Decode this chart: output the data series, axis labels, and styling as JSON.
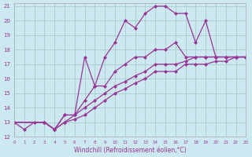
{
  "xlabel": "Windchill (Refroidissement éolien,°C)",
  "background_color": "#cce8f0",
  "grid_color": "#aacccc",
  "line_color": "#993399",
  "xlim": [
    0,
    23
  ],
  "ylim": [
    12,
    21.2
  ],
  "xticks": [
    0,
    1,
    2,
    3,
    4,
    5,
    6,
    7,
    8,
    9,
    10,
    11,
    12,
    13,
    14,
    15,
    16,
    17,
    18,
    19,
    20,
    21,
    22,
    23
  ],
  "yticks": [
    12,
    13,
    14,
    15,
    16,
    17,
    18,
    19,
    20,
    21
  ],
  "series": [
    {
      "x": [
        0,
        1,
        2,
        3,
        4,
        5,
        6,
        7,
        8,
        9,
        10,
        11,
        12,
        13,
        14,
        15,
        16,
        17,
        18,
        19,
        20,
        21,
        22,
        23
      ],
      "y": [
        13,
        12.5,
        13,
        13,
        12.5,
        13.5,
        13.5,
        17.5,
        15.5,
        17.5,
        18.5,
        20,
        19.5,
        20.5,
        21,
        21,
        20.5,
        20.5,
        18.5,
        20,
        17.5,
        17.5,
        17.5,
        17.5
      ]
    },
    {
      "x": [
        0,
        3,
        4,
        5,
        6,
        7,
        8,
        9,
        10,
        11,
        12,
        13,
        14,
        15,
        16,
        17,
        18,
        19,
        20,
        21,
        22,
        23
      ],
      "y": [
        13,
        13,
        12.5,
        13.5,
        13.5,
        14.5,
        15.5,
        15.5,
        16.5,
        17.0,
        17.5,
        17.5,
        18.0,
        18.0,
        18.5,
        17.5,
        17.5,
        17.5,
        17.5,
        17.5,
        17.5,
        17.5
      ]
    },
    {
      "x": [
        0,
        3,
        4,
        5,
        6,
        7,
        8,
        9,
        10,
        11,
        12,
        13,
        14,
        15,
        16,
        17,
        18,
        19,
        20,
        21,
        22,
        23
      ],
      "y": [
        13,
        13,
        12.5,
        13.0,
        13.5,
        14.0,
        14.5,
        15.0,
        15.5,
        15.8,
        16.2,
        16.5,
        17.0,
        17.0,
        17.0,
        17.2,
        17.5,
        17.5,
        17.5,
        17.5,
        17.5,
        17.5
      ]
    },
    {
      "x": [
        0,
        3,
        4,
        5,
        6,
        7,
        8,
        9,
        10,
        11,
        12,
        13,
        14,
        15,
        16,
        17,
        18,
        19,
        20,
        21,
        22,
        23
      ],
      "y": [
        13,
        13,
        12.5,
        13.0,
        13.2,
        13.5,
        14.0,
        14.5,
        15.0,
        15.3,
        15.7,
        16.0,
        16.5,
        16.5,
        16.5,
        17.0,
        17.0,
        17.0,
        17.2,
        17.2,
        17.5,
        17.5
      ]
    }
  ]
}
